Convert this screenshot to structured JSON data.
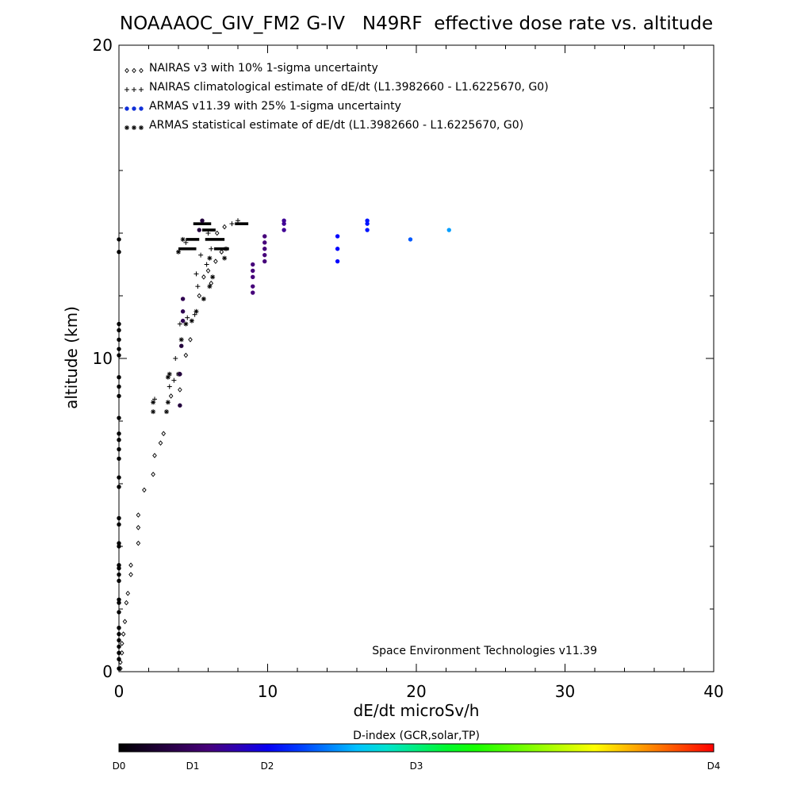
{
  "chart_data": {
    "type": "scatter",
    "title": "NOAAAOC_GIV_FM2 G-IV   N49RF  effective dose rate vs. altitude",
    "xlabel": "dE/dt microSv/h",
    "ylabel": "altitude (km)",
    "xlim": [
      0,
      40
    ],
    "ylim": [
      0,
      20
    ],
    "x_ticks": [
      "0",
      "10",
      "20",
      "30",
      "40"
    ],
    "y_ticks": [
      "0",
      "10",
      "20"
    ],
    "grid": false,
    "legend_position": "top-left",
    "legend": [
      {
        "symbol": "◇◇◇",
        "label": "NAIRAS v3 with 10% 1-sigma uncertainty",
        "color": "#000000"
      },
      {
        "symbol": "+++",
        "label": "NAIRAS climatological estimate of dE/dt (L1.3982660 - L1.6225670, G0)",
        "color": "#000000"
      },
      {
        "symbol": "●●●",
        "label": "ARMAS v11.39 with 25% 1-sigma uncertainty",
        "color": "#1030d8"
      },
      {
        "symbol": "✱✱✱",
        "label": "ARMAS statistical estimate of dE/dt (L1.3982660 - L1.6225670, G0)",
        "color": "#000000"
      }
    ],
    "annotation": "Space Environment Technologies v11.39",
    "colorbar": {
      "title": "D-index (GCR,solar,TP)",
      "labels": [
        {
          "text": "D0",
          "value": 0
        },
        {
          "text": "D1",
          "value": 0.5
        },
        {
          "text": "D2",
          "value": 1
        },
        {
          "text": "D3",
          "value": 2
        },
        {
          "text": "D4",
          "value": 4
        }
      ],
      "range": [
        0,
        4
      ]
    },
    "series": [
      {
        "name": "NAIRAS v3 with 10% 1-sigma uncertainty",
        "marker": "diamond",
        "points": [
          [
            0.1,
            0.1
          ],
          [
            0.1,
            0.3
          ],
          [
            0.2,
            0.6
          ],
          [
            0.2,
            0.9
          ],
          [
            0.3,
            1.2
          ],
          [
            0.4,
            1.6
          ],
          [
            0.5,
            2.2
          ],
          [
            0.6,
            2.5
          ],
          [
            0.8,
            3.1
          ],
          [
            0.8,
            3.4
          ],
          [
            1.3,
            4.1
          ],
          [
            1.3,
            4.6
          ],
          [
            1.3,
            5.0
          ],
          [
            1.7,
            5.8
          ],
          [
            2.3,
            6.3
          ],
          [
            2.4,
            6.9
          ],
          [
            2.8,
            7.3
          ],
          [
            3.0,
            7.6
          ],
          [
            3.5,
            8.8
          ],
          [
            4.1,
            9.0
          ],
          [
            4.1,
            9.5
          ],
          [
            4.5,
            10.1
          ],
          [
            4.8,
            10.6
          ],
          [
            5.4,
            12.0
          ],
          [
            5.7,
            12.6
          ],
          [
            6.0,
            12.8
          ],
          [
            6.2,
            12.4
          ],
          [
            6.5,
            13.1
          ],
          [
            6.9,
            13.4
          ],
          [
            6.6,
            14.0
          ],
          [
            7.1,
            14.2
          ]
        ]
      },
      {
        "name": "NAIRAS climatological estimate of dE/dt (L1.3982660 - L1.6225670, G0)",
        "marker": "plus",
        "points": [
          [
            2.4,
            8.7
          ],
          [
            3.4,
            9.1
          ],
          [
            3.7,
            9.3
          ],
          [
            3.8,
            10.0
          ],
          [
            4.1,
            11.1
          ],
          [
            4.6,
            11.3
          ],
          [
            5.1,
            11.4
          ],
          [
            5.3,
            12.3
          ],
          [
            5.2,
            12.7
          ],
          [
            5.5,
            13.3
          ],
          [
            5.9,
            13.0
          ],
          [
            6.2,
            13.5
          ],
          [
            4.5,
            13.7
          ],
          [
            6.0,
            14.0
          ],
          [
            7.6,
            14.3
          ],
          [
            8.0,
            14.4
          ]
        ]
      },
      {
        "name": "ARMAS statistical estimate of dE/dt (L1.3982660 - L1.6225670, G0)",
        "marker": "asterisk",
        "points": [
          [
            2.3,
            8.6
          ],
          [
            2.3,
            8.3
          ],
          [
            3.2,
            8.3
          ],
          [
            3.3,
            8.6
          ],
          [
            3.3,
            9.4
          ],
          [
            3.4,
            9.5
          ],
          [
            4.0,
            9.5
          ],
          [
            4.2,
            10.6
          ],
          [
            4.5,
            11.1
          ],
          [
            4.9,
            11.2
          ],
          [
            5.2,
            11.5
          ],
          [
            5.7,
            11.9
          ],
          [
            6.1,
            12.3
          ],
          [
            6.3,
            12.6
          ],
          [
            6.1,
            13.2
          ],
          [
            7.1,
            13.2
          ],
          [
            4.0,
            13.4
          ],
          [
            4.3,
            13.8
          ],
          [
            7.2,
            13.5
          ]
        ],
        "bands": [
          {
            "x_from": 5.0,
            "x_to": 6.2,
            "y": 14.3
          },
          {
            "x_from": 5.6,
            "x_to": 6.5,
            "y": 14.1
          },
          {
            "x_from": 4.5,
            "x_to": 5.4,
            "y": 13.8
          },
          {
            "x_from": 5.8,
            "x_to": 7.1,
            "y": 13.8
          },
          {
            "x_from": 4.0,
            "x_to": 5.2,
            "y": 13.5
          },
          {
            "x_from": 6.4,
            "x_to": 7.4,
            "y": 13.5
          },
          {
            "x_from": 7.8,
            "x_to": 8.7,
            "y": 14.3
          }
        ]
      },
      {
        "name": "ARMAS v11.39 with 25% 1-sigma uncertainty",
        "marker": "dot",
        "points": [
          [
            0.0,
            0.1,
            0
          ],
          [
            0.0,
            0.4,
            0
          ],
          [
            0.0,
            0.6,
            0
          ],
          [
            0.0,
            0.8,
            0
          ],
          [
            0.0,
            1.0,
            0
          ],
          [
            0.0,
            1.2,
            0
          ],
          [
            0.0,
            1.4,
            0
          ],
          [
            0.0,
            1.9,
            0
          ],
          [
            0.0,
            2.2,
            0
          ],
          [
            0.0,
            2.3,
            0
          ],
          [
            0.0,
            2.9,
            0
          ],
          [
            0.0,
            3.1,
            0
          ],
          [
            0.0,
            3.3,
            0
          ],
          [
            0.0,
            3.4,
            0
          ],
          [
            0.0,
            4.0,
            0
          ],
          [
            0.0,
            4.1,
            0
          ],
          [
            0.0,
            4.7,
            0
          ],
          [
            0.0,
            4.9,
            0
          ],
          [
            0.0,
            5.9,
            0
          ],
          [
            0.0,
            6.2,
            0
          ],
          [
            0.0,
            6.8,
            0
          ],
          [
            0.0,
            7.1,
            0
          ],
          [
            0.0,
            7.4,
            0
          ],
          [
            0.0,
            7.6,
            0
          ],
          [
            0.0,
            8.1,
            0
          ],
          [
            0.0,
            8.8,
            0
          ],
          [
            0.0,
            9.1,
            0
          ],
          [
            0.0,
            9.4,
            0
          ],
          [
            0.0,
            10.1,
            0
          ],
          [
            0.0,
            10.3,
            0
          ],
          [
            0.0,
            10.6,
            0
          ],
          [
            0.0,
            10.9,
            0
          ],
          [
            0.0,
            11.1,
            0
          ],
          [
            0.0,
            13.4,
            0
          ],
          [
            0.0,
            13.8,
            0
          ],
          [
            4.1,
            8.5,
            0.3
          ],
          [
            4.1,
            9.5,
            0.3
          ],
          [
            4.2,
            10.4,
            0.3
          ],
          [
            4.3,
            11.2,
            0.4
          ],
          [
            4.3,
            11.5,
            0.4
          ],
          [
            4.3,
            11.9,
            0.4
          ],
          [
            5.4,
            14.1,
            0.3
          ],
          [
            5.6,
            14.4,
            0.3
          ],
          [
            9.0,
            12.1,
            0.6
          ],
          [
            9.0,
            12.3,
            0.6
          ],
          [
            9.0,
            12.6,
            0.6
          ],
          [
            9.0,
            12.8,
            0.6
          ],
          [
            9.0,
            13.0,
            0.6
          ],
          [
            9.8,
            13.1,
            0.6
          ],
          [
            9.8,
            13.3,
            0.6
          ],
          [
            9.8,
            13.5,
            0.6
          ],
          [
            9.8,
            13.7,
            0.6
          ],
          [
            9.8,
            13.9,
            0.6
          ],
          [
            11.1,
            14.1,
            0.7
          ],
          [
            11.1,
            14.3,
            0.7
          ],
          [
            11.1,
            14.4,
            0.7
          ],
          [
            14.7,
            13.1,
            1.05
          ],
          [
            14.7,
            13.5,
            1.05
          ],
          [
            14.7,
            13.9,
            1.05
          ],
          [
            16.7,
            14.1,
            1.1
          ],
          [
            16.7,
            14.3,
            1.1
          ],
          [
            16.7,
            14.4,
            1.1
          ],
          [
            19.6,
            13.8,
            1.3
          ],
          [
            22.2,
            14.1,
            1.5
          ]
        ]
      }
    ]
  }
}
